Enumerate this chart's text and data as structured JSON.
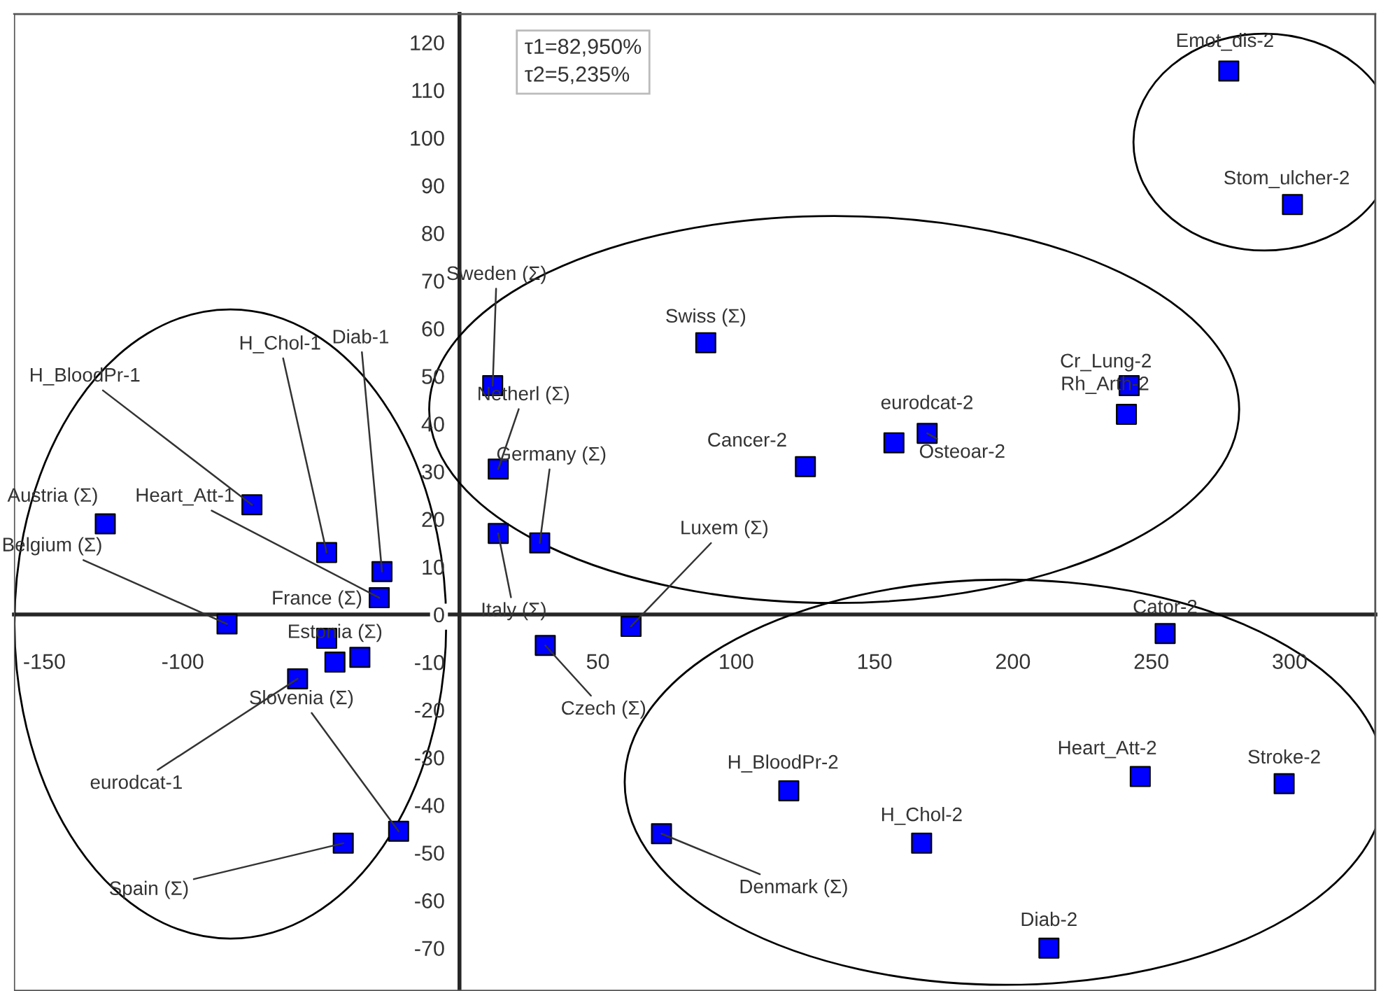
{
  "chart_data": {
    "type": "scatter",
    "marker": "square",
    "grid": false,
    "xlim": [
      -161,
      331
    ],
    "ylim": [
      -79,
      126
    ],
    "xticks": [
      -150,
      -100,
      50,
      100,
      150,
      200,
      250,
      300
    ],
    "yticks": [
      -70,
      -60,
      -50,
      -40,
      -30,
      -20,
      -10,
      0,
      10,
      20,
      30,
      40,
      50,
      60,
      70,
      80,
      90,
      100,
      110,
      120
    ],
    "series": [
      {
        "color": "#0000ff",
        "x": [
          -128,
          -75,
          -48,
          -28,
          -29,
          -84,
          -48,
          -45,
          -36,
          -58.5,
          -22,
          -42,
          12,
          14,
          14,
          29,
          62,
          31,
          89,
          125,
          157,
          169,
          242,
          241,
          278,
          301,
          255,
          246,
          298,
          119,
          167,
          73,
          213
        ],
        "values": [
          19,
          23,
          13,
          9,
          3.5,
          -2,
          -5,
          -10,
          -9,
          -13.5,
          -45.5,
          -48,
          48,
          30.5,
          17,
          15,
          -2.5,
          -6.5,
          57,
          31,
          36,
          38,
          48,
          42,
          114,
          86,
          -4,
          -34,
          -35.5,
          -37,
          -48,
          -46,
          -70
        ]
      }
    ],
    "annotations": [
      {
        "text": "Austria (Σ)",
        "x": -128,
        "y": 19
      },
      {
        "text": "H_BloodPr-1",
        "x": -75,
        "y": 23
      },
      {
        "text": "H_Chol-1",
        "x": -48,
        "y": 13
      },
      {
        "text": "Diab-1",
        "x": -28,
        "y": 9
      },
      {
        "text": "Heart_Att-1",
        "x": -29,
        "y": 3.5
      },
      {
        "text": "Belgium (Σ)",
        "x": -84,
        "y": -2
      },
      {
        "text": "France (Σ)",
        "x": -48,
        "y": -5
      },
      {
        "text": "Estonia (Σ)",
        "x": -45,
        "y": -10
      },
      {
        "text": "eurodcat-1",
        "x": -58.5,
        "y": -13.5
      },
      {
        "text": "Slovenia (Σ)",
        "x": -22,
        "y": -45.5
      },
      {
        "text": "Spain (Σ)",
        "x": -42,
        "y": -48
      },
      {
        "text": "Sweden (Σ)",
        "x": 12,
        "y": 48
      },
      {
        "text": "Netherl (Σ)",
        "x": 14,
        "y": 30.5
      },
      {
        "text": "Italy (Σ)",
        "x": 14,
        "y": 17
      },
      {
        "text": "Germany (Σ)",
        "x": 29,
        "y": 15
      },
      {
        "text": "Luxem (Σ)",
        "x": 62,
        "y": -2.5
      },
      {
        "text": "Czech (Σ)",
        "x": 31,
        "y": -6.5
      },
      {
        "text": "Swiss (Σ)",
        "x": 89,
        "y": 57
      },
      {
        "text": "Cancer-2",
        "x": 125,
        "y": 31
      },
      {
        "text": "eurodcat-2",
        "x": 157,
        "y": 36
      },
      {
        "text": "Osteoar-2",
        "x": 169,
        "y": 38
      },
      {
        "text": "Cr_Lung-2",
        "x": 242,
        "y": 48
      },
      {
        "text": "Rh_Arth-2",
        "x": 241,
        "y": 42
      },
      {
        "text": "Emot_dis-2",
        "x": 278,
        "y": 114
      },
      {
        "text": "Stom_ulcher-2",
        "x": 301,
        "y": 86
      },
      {
        "text": "Cator-2",
        "x": 255,
        "y": -4
      },
      {
        "text": "Heart_Att-2",
        "x": 246,
        "y": -34
      },
      {
        "text": "Stroke-2",
        "x": 298,
        "y": -35.5
      },
      {
        "text": "H_BloodPr-2",
        "x": 119,
        "y": -37
      },
      {
        "text": "H_Chol-2",
        "x": 167,
        "y": -48
      },
      {
        "text": "Denmark (Σ)",
        "x": 73,
        "y": -46
      },
      {
        "text": "Diab-2",
        "x": 213,
        "y": -70
      },
      "τ1=82,950%\nτ2=5,235%"
    ]
  }
}
